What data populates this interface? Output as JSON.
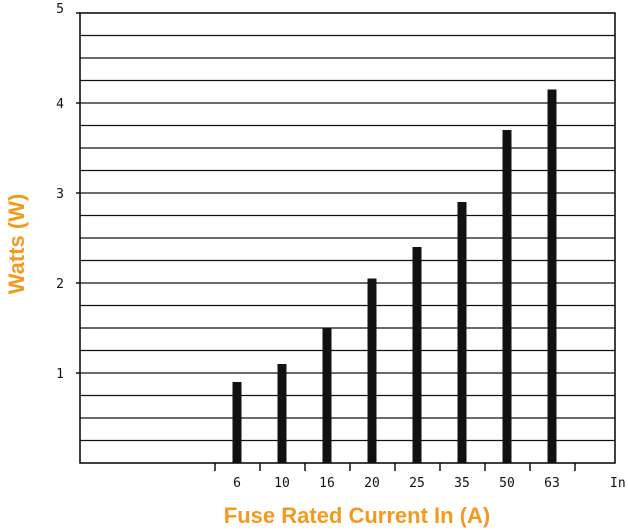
{
  "chart_data": {
    "type": "bar",
    "title": "",
    "xlabel": "Fuse Rated Current In (A)",
    "ylabel": "Watts (W)",
    "x_axis_end_label": "In",
    "categories": [
      "6",
      "10",
      "16",
      "20",
      "25",
      "35",
      "50",
      "63"
    ],
    "values": [
      0.9,
      1.1,
      1.5,
      2.05,
      2.4,
      2.9,
      3.7,
      4.15
    ],
    "ylim": [
      0,
      5
    ],
    "yticks": [
      1,
      2,
      3,
      4,
      5
    ],
    "y_gridline_step": 0.25,
    "grid": true,
    "legend": "none",
    "colors": {
      "bars": "#111111",
      "grid": "#111111",
      "axis_titles": "#f39a1e"
    }
  }
}
